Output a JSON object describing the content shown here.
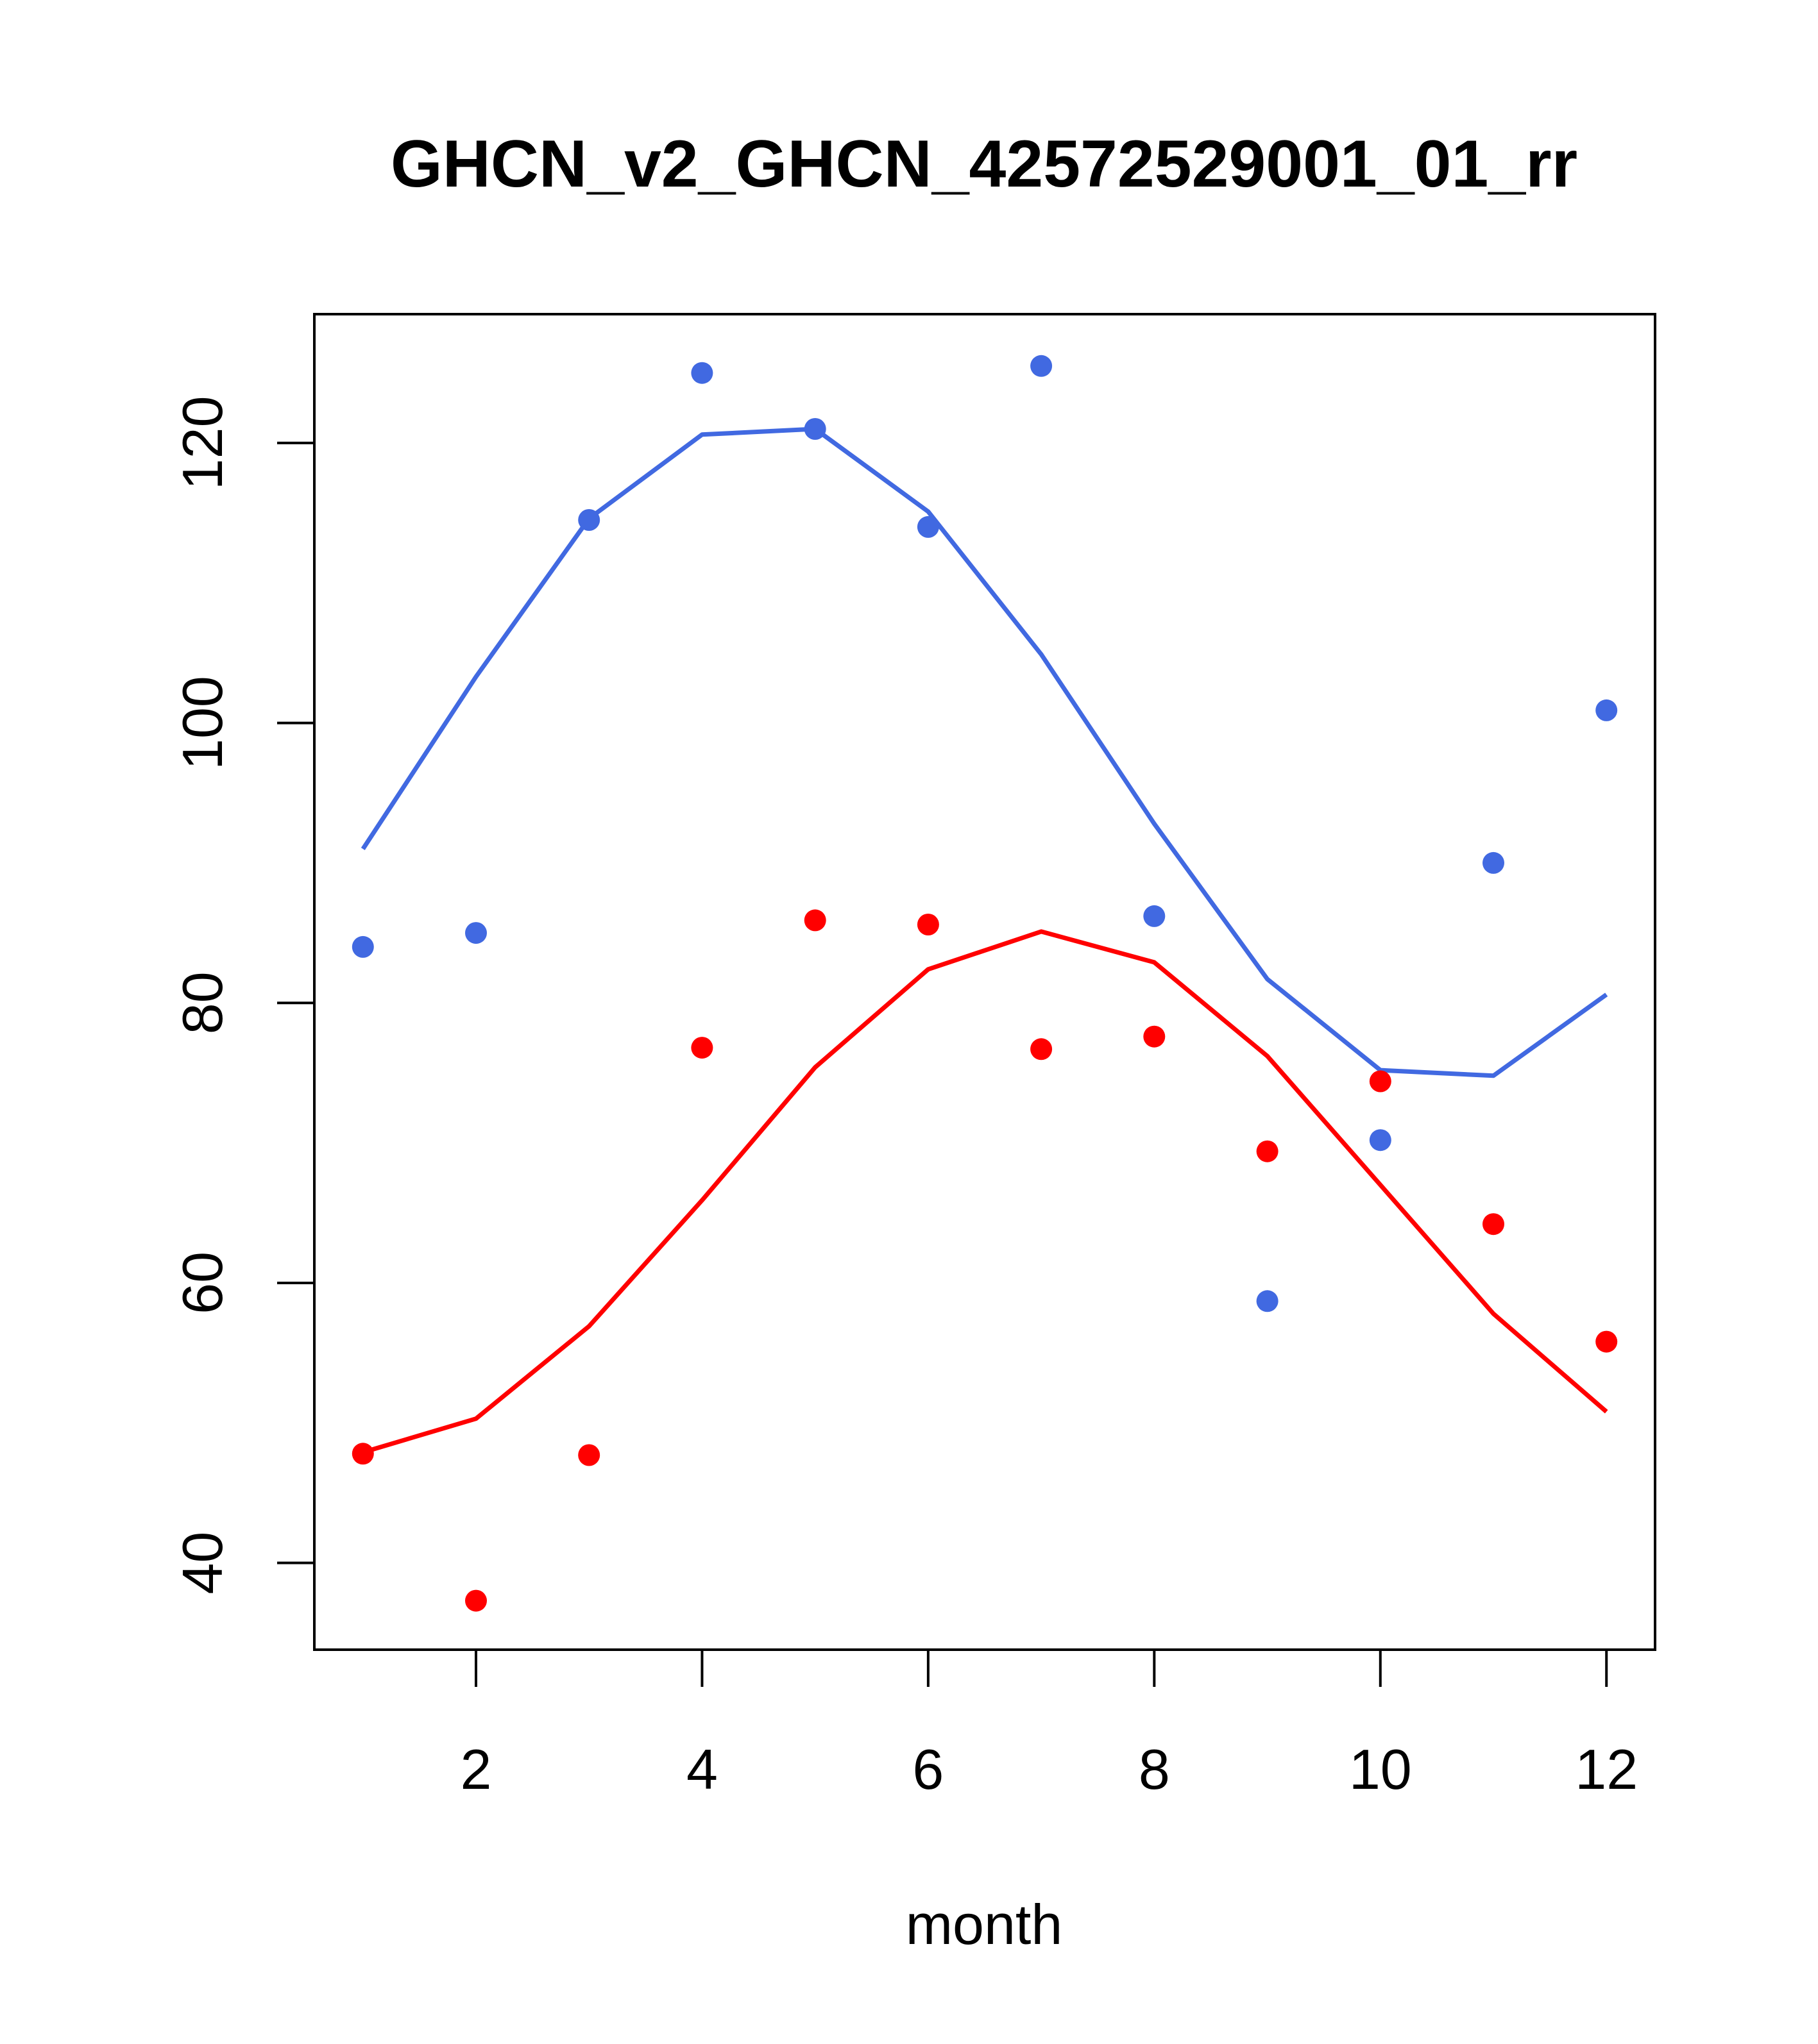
{
  "chart_data": {
    "type": "line",
    "title": "GHCN_v2_GHCN_42572529001_01_rr",
    "xlabel": "month",
    "ylabel": "",
    "xlim": [
      0.57,
      12.43
    ],
    "ylim": [
      33.8,
      129.2
    ],
    "x_ticks": [
      2,
      4,
      6,
      8,
      10,
      12
    ],
    "y_ticks": [
      40,
      60,
      80,
      100,
      120
    ],
    "grid": false,
    "series": [
      {
        "color": "#4169E1",
        "x": [
          1,
          2,
          3,
          4,
          5,
          6,
          7,
          8,
          9,
          10,
          11,
          12
        ],
        "points": [
          84.0,
          85.0,
          114.5,
          125.0,
          121.0,
          114.0,
          125.5,
          86.2,
          58.7,
          70.2,
          90.0,
          100.9
        ],
        "line": [
          91.0,
          103.3,
          114.6,
          120.6,
          121.0,
          115.1,
          104.9,
          92.8,
          81.7,
          75.2,
          74.8,
          80.6
        ]
      },
      {
        "color": "#FF0000",
        "x": [
          1,
          2,
          3,
          4,
          5,
          6,
          7,
          8,
          9,
          10,
          11,
          12
        ],
        "points": [
          47.8,
          37.3,
          47.7,
          76.8,
          85.9,
          85.6,
          76.7,
          77.6,
          69.4,
          74.4,
          64.2,
          55.8
        ],
        "line": [
          47.9,
          50.3,
          56.9,
          65.9,
          75.4,
          82.4,
          85.1,
          82.9,
          76.2,
          67.0,
          57.8,
          50.8
        ]
      }
    ]
  }
}
